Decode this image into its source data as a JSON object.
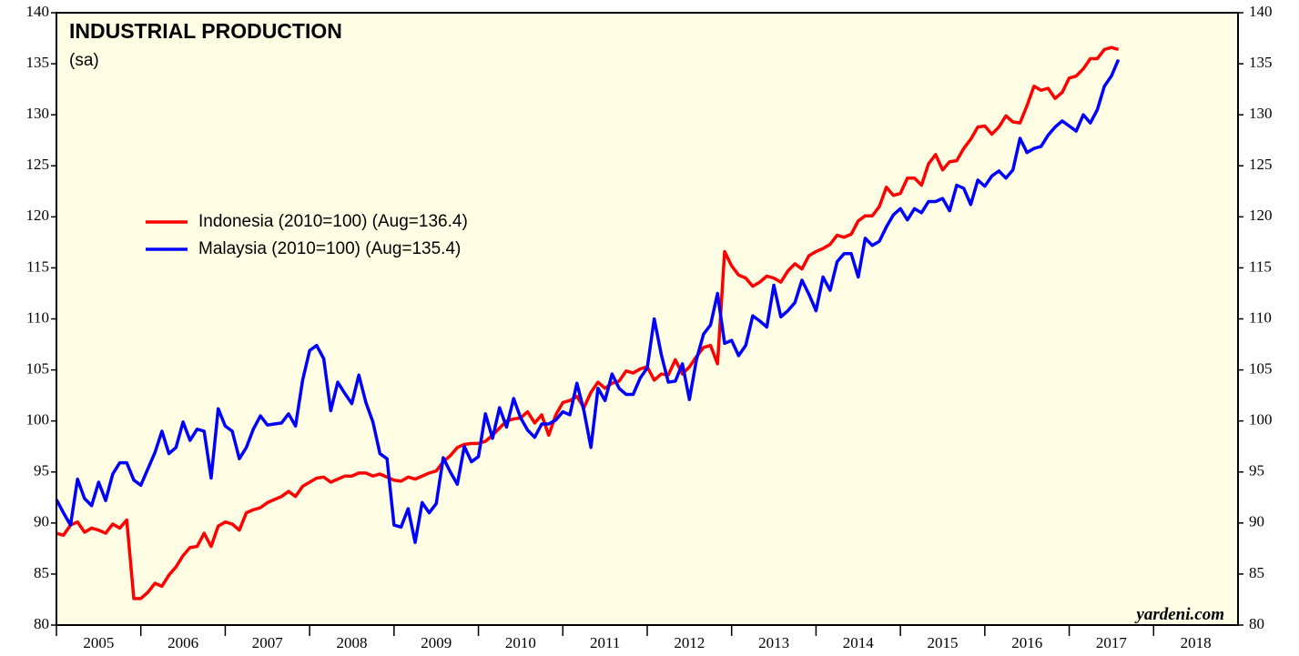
{
  "chart_data": {
    "type": "line",
    "title": "INDUSTRIAL PRODUCTION",
    "subtitle": "(sa)",
    "annotation": "yardeni.com",
    "x": [
      2005,
      2005.083,
      2005.167,
      2005.25,
      2005.333,
      2005.417,
      2005.5,
      2005.583,
      2005.667,
      2005.75,
      2005.833,
      2005.917,
      2006,
      2006.083,
      2006.167,
      2006.25,
      2006.333,
      2006.417,
      2006.5,
      2006.583,
      2006.667,
      2006.75,
      2006.833,
      2006.917,
      2007,
      2007.083,
      2007.167,
      2007.25,
      2007.333,
      2007.417,
      2007.5,
      2007.583,
      2007.667,
      2007.75,
      2007.833,
      2007.917,
      2008,
      2008.083,
      2008.167,
      2008.25,
      2008.333,
      2008.417,
      2008.5,
      2008.583,
      2008.667,
      2008.75,
      2008.833,
      2008.917,
      2009,
      2009.083,
      2009.167,
      2009.25,
      2009.333,
      2009.417,
      2009.5,
      2009.583,
      2009.667,
      2009.75,
      2009.833,
      2009.917,
      2010,
      2010.083,
      2010.167,
      2010.25,
      2010.333,
      2010.417,
      2010.5,
      2010.583,
      2010.667,
      2010.75,
      2010.833,
      2010.917,
      2011,
      2011.083,
      2011.167,
      2011.25,
      2011.333,
      2011.417,
      2011.5,
      2011.583,
      2011.667,
      2011.75,
      2011.833,
      2011.917,
      2012,
      2012.083,
      2012.167,
      2012.25,
      2012.333,
      2012.417,
      2012.5,
      2012.583,
      2012.667,
      2012.75,
      2012.833,
      2012.917,
      2013,
      2013.083,
      2013.167,
      2013.25,
      2013.333,
      2013.417,
      2013.5,
      2013.583,
      2013.667,
      2013.75,
      2013.833,
      2013.917,
      2014,
      2014.083,
      2014.167,
      2014.25,
      2014.333,
      2014.417,
      2014.5,
      2014.583,
      2014.667,
      2014.75,
      2014.833,
      2014.917,
      2015,
      2015.083,
      2015.167,
      2015.25,
      2015.333,
      2015.417,
      2015.5,
      2015.583,
      2015.667,
      2015.75,
      2015.833,
      2015.917,
      2016,
      2016.083,
      2016.167,
      2016.25,
      2016.333,
      2016.417,
      2016.5,
      2016.583,
      2016.667,
      2016.75,
      2016.833,
      2016.917,
      2017,
      2017.083,
      2017.167,
      2017.25,
      2017.333,
      2017.417,
      2017.5,
      2017.583
    ],
    "series": [
      {
        "name": "Indonesia (2010=100) (Aug=136.4)",
        "color": "#ff0000",
        "values": [
          89,
          88.8,
          89.8,
          90.1,
          89.1,
          89.5,
          89.3,
          89.0,
          89.9,
          89.5,
          90.3,
          82.6,
          82.6,
          83.2,
          84.1,
          83.8,
          84.9,
          85.7,
          86.8,
          87.6,
          87.7,
          89.0,
          87.7,
          89.7,
          90.1,
          89.9,
          89.3,
          91.0,
          91.3,
          91.5,
          92.0,
          92.3,
          92.6,
          93.1,
          92.6,
          93.6,
          94.0,
          94.4,
          94.5,
          94.0,
          94.3,
          94.6,
          94.6,
          94.9,
          94.9,
          94.6,
          94.8,
          94.5,
          94.2,
          94.1,
          94.5,
          94.3,
          94.6,
          94.9,
          95.1,
          96.0,
          96.6,
          97.4,
          97.7,
          97.8,
          97.8,
          98.0,
          98.6,
          99.3,
          100.0,
          100.2,
          100.3,
          100.9,
          99.8,
          100.6,
          98.6,
          100.6,
          101.8,
          102.0,
          102.4,
          101.3,
          102.8,
          103.8,
          103.2,
          103.7,
          103.9,
          104.9,
          104.7,
          105.1,
          105.3,
          104.0,
          104.6,
          104.5,
          106.0,
          104.6,
          105.3,
          106.3,
          107.2,
          107.4,
          105.6,
          116.6,
          115.2,
          114.3,
          114.0,
          113.2,
          113.6,
          114.2,
          114.0,
          113.6,
          114.7,
          115.4,
          114.9,
          116.2,
          116.6,
          116.9,
          117.3,
          118.2,
          118.0,
          118.3,
          119.6,
          120.1,
          120.1,
          121.0,
          122.9,
          122.1,
          122.3,
          123.8,
          123.8,
          123.1,
          125.2,
          126.1,
          124.6,
          125.4,
          125.5,
          126.7,
          127.6,
          128.8,
          128.9,
          128.1,
          128.8,
          129.9,
          129.3,
          129.2,
          130.9,
          132.8,
          132.4,
          132.6,
          131.6,
          132.2,
          133.6,
          133.8,
          134.5,
          135.5,
          135.5,
          136.4,
          136.6,
          136.4
        ]
      },
      {
        "name": "Malaysia (2010=100) (Aug=135.4)",
        "color": "#0000ff",
        "values": [
          92.3,
          91.0,
          89.8,
          94.3,
          92.4,
          91.7,
          94.0,
          92.2,
          94.8,
          95.9,
          95.9,
          94.2,
          93.7,
          95.3,
          96.9,
          99.0,
          96.8,
          97.4,
          99.9,
          98.1,
          99.2,
          99.0,
          94.4,
          101.2,
          99.5,
          99.0,
          96.3,
          97.4,
          99.2,
          100.5,
          99.6,
          99.7,
          99.8,
          100.7,
          99.5,
          104.0,
          106.9,
          107.4,
          106.1,
          101.0,
          103.8,
          102.7,
          101.7,
          104.5,
          101.8,
          99.9,
          96.8,
          96.3,
          89.8,
          89.6,
          91.4,
          88.1,
          92.0,
          91.0,
          91.9,
          96.4,
          95.0,
          93.8,
          97.5,
          96.0,
          96.5,
          100.7,
          98.3,
          101.3,
          99.4,
          102.2,
          100.3,
          99.1,
          98.4,
          99.7,
          99.7,
          100.1,
          100.9,
          100.6,
          103.7,
          101.0,
          97.4,
          103.2,
          102.0,
          104.6,
          103.2,
          102.6,
          102.6,
          104.2,
          105.2,
          110.0,
          106.5,
          103.8,
          103.9,
          105.6,
          102.1,
          106.0,
          108.5,
          109.4,
          112.5,
          107.6,
          107.9,
          106.4,
          107.4,
          110.3,
          109.8,
          109.2,
          113.3,
          110.2,
          110.8,
          111.6,
          113.8,
          112.4,
          110.8,
          114.1,
          112.8,
          115.6,
          116.4,
          116.4,
          114.1,
          117.9,
          117.2,
          117.6,
          119.0,
          120.2,
          120.8,
          119.7,
          120.8,
          120.4,
          121.5,
          121.5,
          121.8,
          120.6,
          123.1,
          122.8,
          121.2,
          123.6,
          123.0,
          124.0,
          124.5,
          123.8,
          124.6,
          127.7,
          126.3,
          126.7,
          126.9,
          128.0,
          128.8,
          129.4,
          128.9,
          128.4,
          130.0,
          129.2,
          130.5,
          132.8,
          133.8,
          135.4
        ]
      }
    ],
    "xlim": [
      2005,
      2019
    ],
    "xticks": [
      2005,
      2006,
      2007,
      2008,
      2009,
      2010,
      2011,
      2012,
      2013,
      2014,
      2015,
      2016,
      2017,
      2018
    ],
    "ylim": [
      80,
      140
    ],
    "yticks": [
      80,
      85,
      90,
      95,
      100,
      105,
      110,
      115,
      120,
      125,
      130,
      135,
      140
    ],
    "y2lim": [
      80,
      140
    ],
    "y2ticks": [
      80,
      85,
      90,
      95,
      100,
      105,
      110,
      115,
      120,
      125,
      130,
      135,
      140
    ],
    "background": "#fffde3"
  }
}
